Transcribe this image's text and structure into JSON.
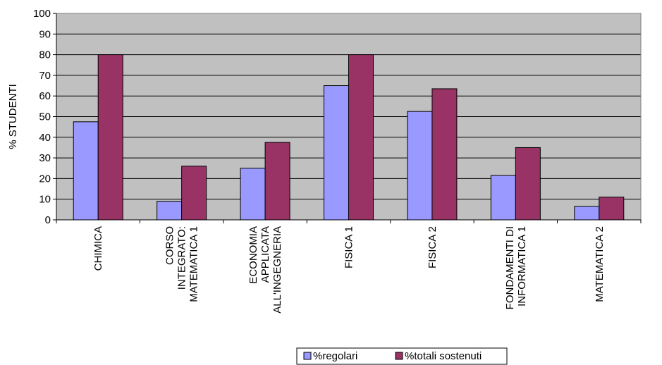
{
  "chart_data": {
    "type": "bar",
    "title": "",
    "xlabel": "",
    "ylabel": "% STUDENTI",
    "ylim": [
      0,
      100
    ],
    "y_ticks": [
      0,
      10,
      20,
      30,
      40,
      50,
      60,
      70,
      80,
      90,
      100
    ],
    "grid": true,
    "legend_position": "bottom",
    "plot_background": "#c0c0c0",
    "categories": [
      [
        "CHIMICA"
      ],
      [
        "CORSO",
        "INTEGRATO:",
        "MATEMATICA 1"
      ],
      [
        "ECONOMIA",
        "APPLICATA",
        "ALL'INGEGNERIA"
      ],
      [
        "FISICA 1"
      ],
      [
        "FISICA 2"
      ],
      [
        "FONDAMENTI DI",
        "INFORMATICA 1"
      ],
      [
        "MATEMATICA 2"
      ]
    ],
    "series": [
      {
        "name": "%regolari",
        "color": "#9999ff",
        "values": [
          47.5,
          9,
          25,
          65,
          52.5,
          21.5,
          6.5
        ]
      },
      {
        "name": "%totali sostenuti",
        "color": "#993366",
        "values": [
          80,
          26,
          37.5,
          80,
          63.5,
          35,
          11
        ]
      }
    ]
  }
}
